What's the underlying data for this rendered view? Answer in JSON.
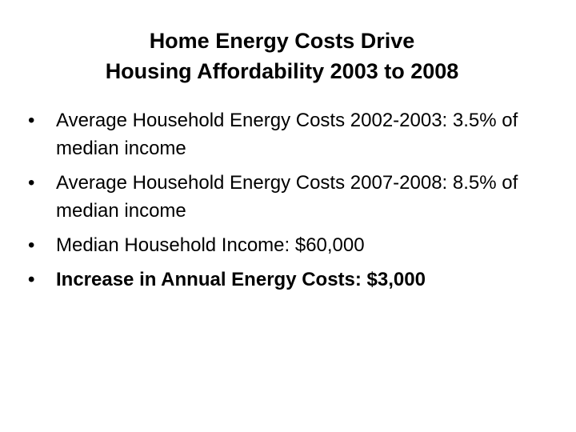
{
  "title": [
    "Home Energy Costs Drive",
    "Housing Affordability 2003 to 2008"
  ],
  "bullets": [
    "Average Household Energy Costs 2002-2003:  3.5% of median income",
    "Average Household Energy Costs 2007-2008:  8.5% of median income",
    "Median Household Income: $60,000",
    "Increase in Annual Energy Costs: $3,000"
  ]
}
